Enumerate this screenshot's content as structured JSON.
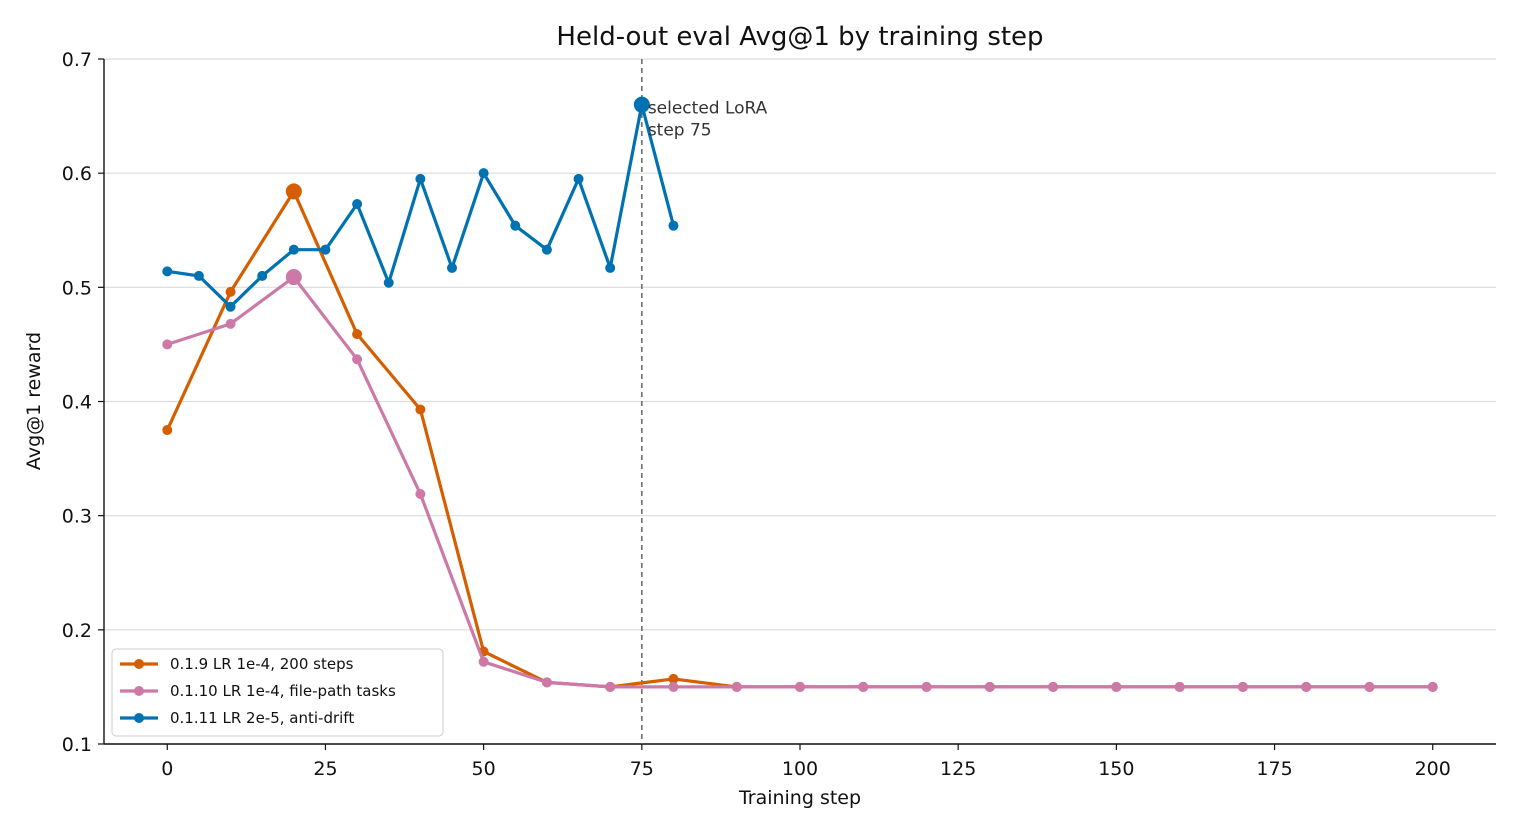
{
  "chart_data": {
    "type": "line",
    "title": "Held-out eval Avg@1 by training step",
    "xlabel": "Training step",
    "ylabel": "Avg@1 reward",
    "xlim": [
      -10,
      210
    ],
    "ylim": [
      0.1,
      0.7
    ],
    "xticks": [
      "0",
      "25",
      "50",
      "75",
      "100",
      "125",
      "150",
      "175",
      "200"
    ],
    "yticks": [
      "0.1",
      "0.2",
      "0.3",
      "0.4",
      "0.5",
      "0.6",
      "0.7"
    ],
    "grid": "horizontal",
    "legend_position": "lower-left",
    "series": [
      {
        "name": "0.1.9 LR 1e-4, 200 steps",
        "color": "#D55E00",
        "x": [
          0,
          10,
          20,
          30,
          40,
          50,
          60,
          70,
          80,
          90,
          100,
          110,
          120,
          130,
          140,
          150,
          160,
          170,
          180,
          190,
          200
        ],
        "y": [
          0.375,
          0.496,
          0.584,
          0.459,
          0.393,
          0.181,
          0.154,
          0.15,
          0.157,
          0.15,
          0.15,
          0.15,
          0.15,
          0.15,
          0.15,
          0.15,
          0.15,
          0.15,
          0.15,
          0.15,
          0.15
        ],
        "highlight_x": 20
      },
      {
        "name": "0.1.10 LR 1e-4, file-path tasks",
        "color": "#CC79A7",
        "x": [
          0,
          10,
          20,
          30,
          40,
          50,
          60,
          70,
          80,
          90,
          100,
          110,
          120,
          130,
          140,
          150,
          160,
          170,
          180,
          190,
          200
        ],
        "y": [
          0.45,
          0.468,
          0.509,
          0.437,
          0.319,
          0.172,
          0.154,
          0.15,
          0.15,
          0.15,
          0.15,
          0.15,
          0.15,
          0.15,
          0.15,
          0.15,
          0.15,
          0.15,
          0.15,
          0.15,
          0.15
        ],
        "highlight_x": 20
      },
      {
        "name": "0.1.11 LR 2e-5, anti-drift",
        "color": "#0072B2",
        "x": [
          0,
          5,
          10,
          15,
          20,
          25,
          30,
          35,
          40,
          45,
          50,
          55,
          60,
          65,
          70,
          75,
          80
        ],
        "y": [
          0.514,
          0.51,
          0.483,
          0.51,
          0.533,
          0.533,
          0.573,
          0.504,
          0.595,
          0.517,
          0.6,
          0.554,
          0.533,
          0.595,
          0.517,
          0.66,
          0.554
        ],
        "highlight_x": 75
      }
    ],
    "annotation": {
      "x": 75,
      "y": 0.66,
      "lines": [
        "selected LoRA",
        "step 75"
      ]
    }
  }
}
